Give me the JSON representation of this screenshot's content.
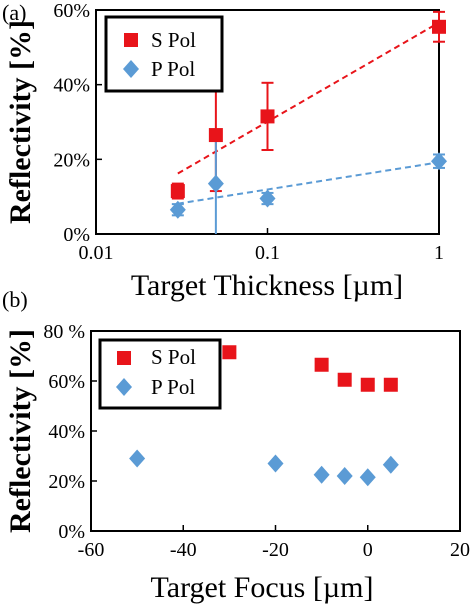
{
  "chart_data": [
    {
      "panel_label": "(a)",
      "type": "scatter",
      "xlabel": "Target Thickness [µm]",
      "ylabel": "Reflectivity [%]",
      "xscale": "log",
      "xlim": [
        0.01,
        1
      ],
      "ylim": [
        0,
        0.6
      ],
      "xticks": [
        {
          "v": 0.01,
          "label": "0.01"
        },
        {
          "v": 0.1,
          "label": "0.1"
        },
        {
          "v": 1,
          "label": "1"
        }
      ],
      "yticks": [
        {
          "v": 0,
          "label": "0%"
        },
        {
          "v": 0.2,
          "label": "20%"
        },
        {
          "v": 0.4,
          "label": "40%"
        },
        {
          "v": 0.6,
          "label": "60%"
        }
      ],
      "legend_position": "top-left",
      "series": [
        {
          "name": "S Pol",
          "color": "#e8141a",
          "marker": "square",
          "points": [
            {
              "x": 0.03,
              "y": 0.115,
              "err": 0.02
            },
            {
              "x": 0.05,
              "y": 0.265,
              "err": 0.15
            },
            {
              "x": 0.1,
              "y": 0.315,
              "err": 0.09
            },
            {
              "x": 1,
              "y": 0.555,
              "err": 0.04
            }
          ],
          "trend": {
            "kind": "log-fit",
            "style": "dashed",
            "from": 0.03,
            "to": 1
          }
        },
        {
          "name": "P Pol",
          "color": "#5b9bd5",
          "marker": "diamond",
          "points": [
            {
              "x": 0.03,
              "y": 0.065,
              "err": 0.015
            },
            {
              "x": 0.05,
              "y": 0.135,
              "err": 0.135
            },
            {
              "x": 0.1,
              "y": 0.095,
              "err": 0.015
            },
            {
              "x": 1,
              "y": 0.195,
              "err": 0.018
            }
          ],
          "trend": {
            "kind": "log-fit",
            "style": "dashed",
            "from": 0.03,
            "to": 1
          }
        }
      ]
    },
    {
      "panel_label": "(b)",
      "type": "scatter",
      "xlabel": "Target Focus [µm]",
      "ylabel": "Reflectivity [%]",
      "xscale": "linear",
      "xlim": [
        -60,
        20
      ],
      "ylim": [
        0,
        0.8
      ],
      "xticks": [
        {
          "v": -60,
          "label": "-60"
        },
        {
          "v": -40,
          "label": "-40"
        },
        {
          "v": -20,
          "label": "-20"
        },
        {
          "v": 0,
          "label": "0"
        },
        {
          "v": 20,
          "label": "20"
        }
      ],
      "yticks": [
        {
          "v": 0,
          "label": "0%"
        },
        {
          "v": 0.2,
          "label": "20%"
        },
        {
          "v": 0.4,
          "label": "40%"
        },
        {
          "v": 0.6,
          "label": "60%"
        },
        {
          "v": 0.8,
          "label": "80 %"
        }
      ],
      "legend_position": "top-left",
      "series": [
        {
          "name": "S Pol",
          "color": "#e8141a",
          "marker": "square",
          "points": [
            {
              "x": -30,
              "y": 0.715
            },
            {
              "x": -10,
              "y": 0.665
            },
            {
              "x": -5,
              "y": 0.605
            },
            {
              "x": 0,
              "y": 0.585
            },
            {
              "x": 5,
              "y": 0.585
            }
          ]
        },
        {
          "name": "P Pol",
          "color": "#5b9bd5",
          "marker": "diamond",
          "points": [
            {
              "x": -50,
              "y": 0.29
            },
            {
              "x": -20,
              "y": 0.27
            },
            {
              "x": -10,
              "y": 0.225
            },
            {
              "x": -5,
              "y": 0.22
            },
            {
              "x": 0,
              "y": 0.215
            },
            {
              "x": 5,
              "y": 0.265
            }
          ]
        }
      ]
    }
  ]
}
